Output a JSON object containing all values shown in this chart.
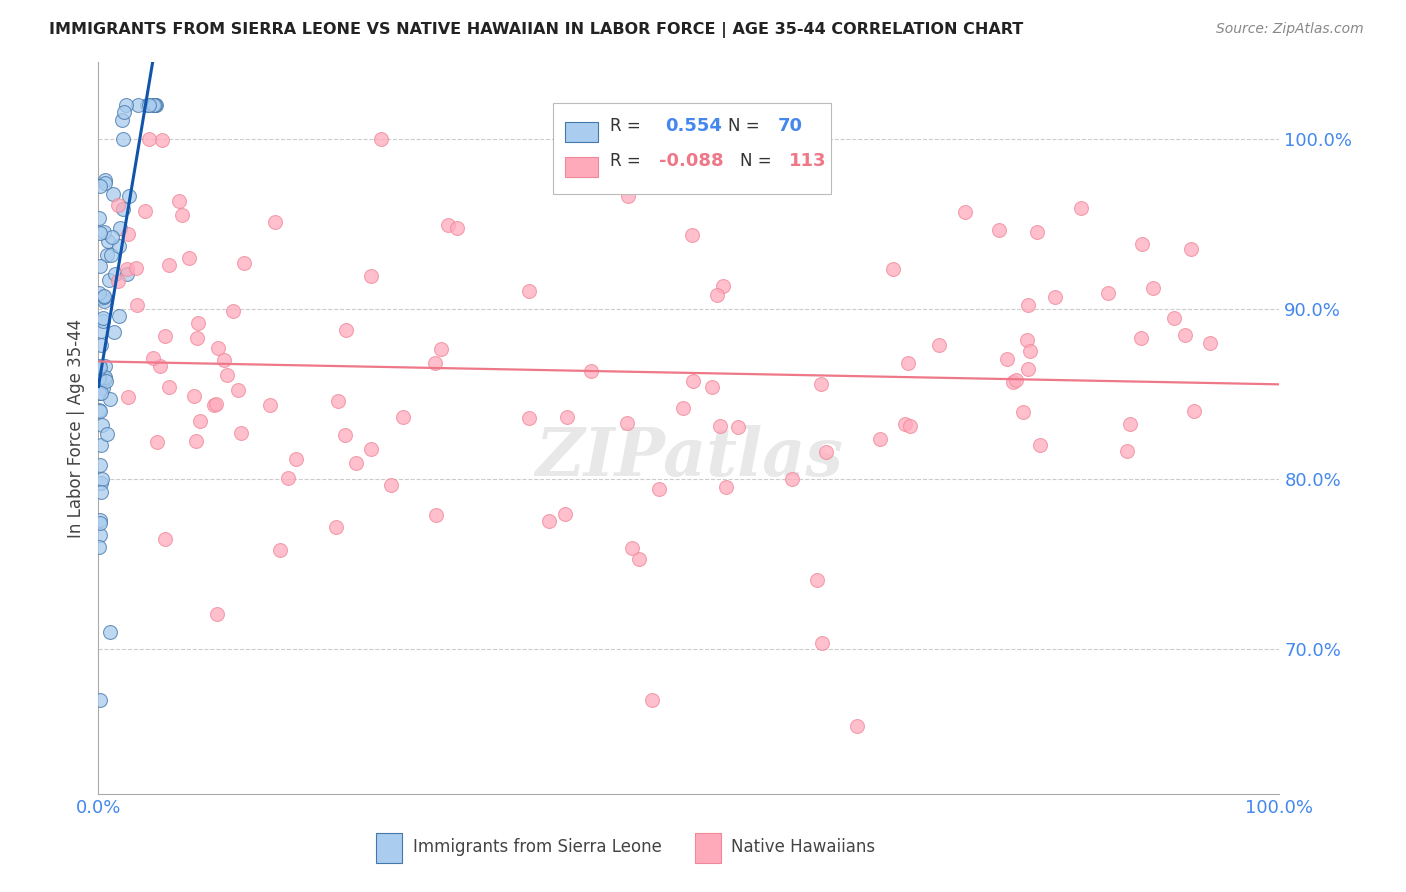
{
  "title": "IMMIGRANTS FROM SIERRA LEONE VS NATIVE HAWAIIAN IN LABOR FORCE | AGE 35-44 CORRELATION CHART",
  "source": "Source: ZipAtlas.com",
  "ylabel": "In Labor Force | Age 35-44",
  "right_yticks": [
    0.7,
    0.8,
    0.9,
    1.0
  ],
  "legend1": "Immigrants from Sierra Leone",
  "legend2": "Native Hawaiians",
  "blue_color": "#AACCEE",
  "blue_edge": "#4477AA",
  "pink_color": "#FFAABB",
  "pink_edge": "#EE8899",
  "trend_blue": "#1155AA",
  "trend_pink": "#EE7788",
  "watermark": "ZIPatlas",
  "bg_color": "#FFFFFF",
  "grid_color": "#CCCCCC",
  "title_color": "#222222",
  "right_axis_color": "#4488EE",
  "legend_r_color": "#333333",
  "legend_val_blue": "#4488EE",
  "legend_val_pink": "#EE7788"
}
